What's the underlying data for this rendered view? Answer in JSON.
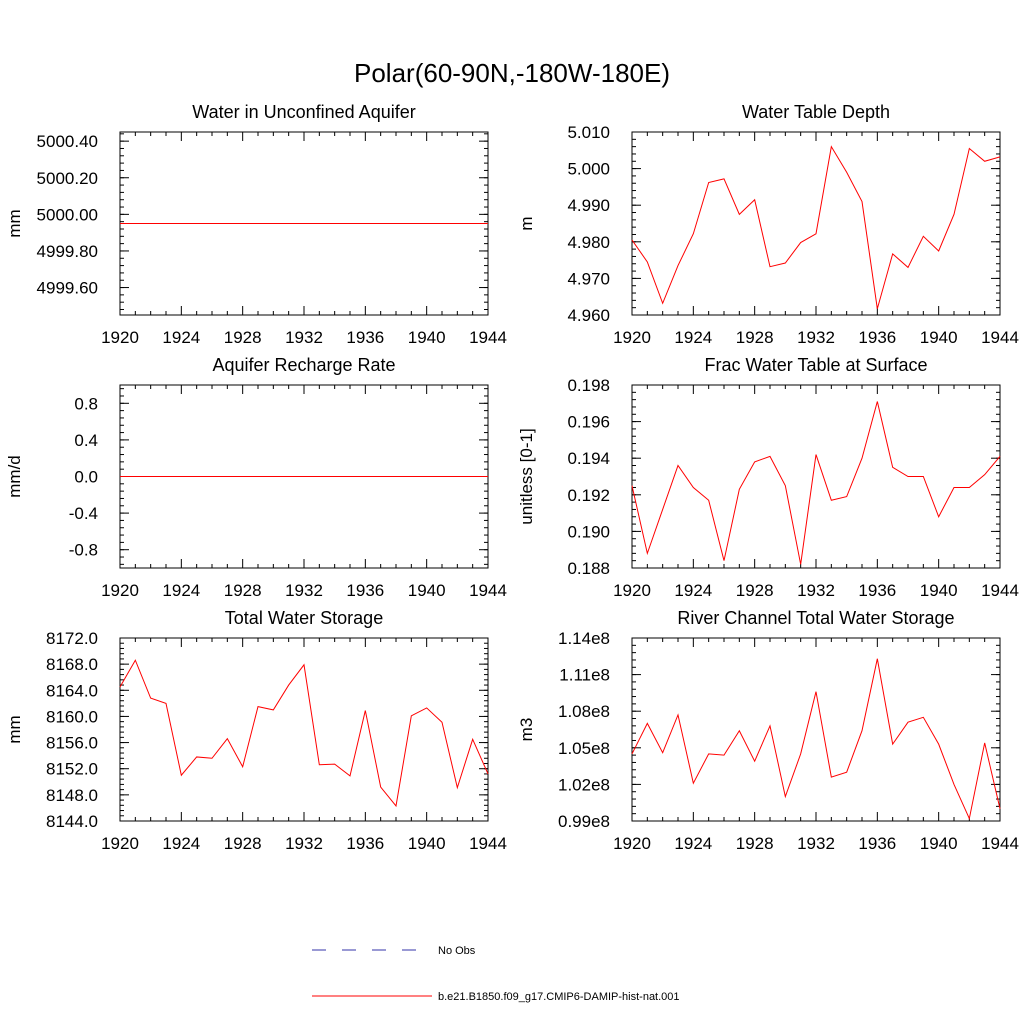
{
  "title": "Polar(60-90N,-180W-180E)",
  "colors": {
    "series": "#ff0000",
    "obs": "#3333aa",
    "frame": "#000000"
  },
  "legend": {
    "entries": [
      {
        "label": "No Obs",
        "style": "dashed",
        "color": "#3333aa"
      },
      {
        "label": "b.e21.B1850.f09_g17.CMIP6-DAMIP-hist-nat.001",
        "style": "solid",
        "color": "#ff0000"
      }
    ]
  },
  "chart_data": [
    {
      "type": "line",
      "title": "Water in Unconfined Aquifer",
      "ylabel": "mm",
      "xlim": [
        1920,
        1944
      ],
      "ylim": [
        4999.45,
        5000.45
      ],
      "xticks": [
        1920,
        1924,
        1928,
        1932,
        1936,
        1940,
        1944
      ],
      "yticks": [
        4999.6,
        4999.8,
        5000.0,
        5000.2,
        5000.4
      ],
      "ytick_labels": [
        "4999.60",
        "4999.80",
        "5000.00",
        "5000.20",
        "5000.40"
      ],
      "x": [
        1920,
        1921,
        1922,
        1923,
        1924,
        1925,
        1926,
        1927,
        1928,
        1929,
        1930,
        1931,
        1932,
        1933,
        1934,
        1935,
        1936,
        1937,
        1938,
        1939,
        1940,
        1941,
        1942,
        1943,
        1944
      ],
      "series": [
        {
          "name": "b.e21.B1850.f09_g17.CMIP6-DAMIP-hist-nat.001",
          "values": [
            4999.95,
            4999.95,
            4999.95,
            4999.95,
            4999.95,
            4999.95,
            4999.95,
            4999.95,
            4999.95,
            4999.95,
            4999.95,
            4999.95,
            4999.95,
            4999.95,
            4999.95,
            4999.95,
            4999.95,
            4999.95,
            4999.95,
            4999.95,
            4999.95,
            4999.95,
            4999.95,
            4999.95,
            4999.95
          ]
        }
      ]
    },
    {
      "type": "line",
      "title": "Water Table Depth",
      "ylabel": "m",
      "xlim": [
        1920,
        1944
      ],
      "ylim": [
        4.96,
        5.01
      ],
      "xticks": [
        1920,
        1924,
        1928,
        1932,
        1936,
        1940,
        1944
      ],
      "yticks": [
        4.96,
        4.97,
        4.98,
        4.99,
        5.0,
        5.01
      ],
      "ytick_labels": [
        "4.960",
        "4.970",
        "4.980",
        "4.990",
        "5.000",
        "5.010"
      ],
      "x": [
        1920,
        1921,
        1922,
        1923,
        1924,
        1925,
        1926,
        1927,
        1928,
        1929,
        1930,
        1931,
        1932,
        1933,
        1934,
        1935,
        1936,
        1937,
        1938,
        1939,
        1940,
        1941,
        1942,
        1943,
        1944
      ],
      "series": [
        {
          "name": "b.e21.B1850.f09_g17.CMIP6-DAMIP-hist-nat.001",
          "values": [
            4.9805,
            4.9745,
            4.9632,
            4.9735,
            4.9822,
            4.9962,
            4.9972,
            4.9875,
            4.9915,
            4.9732,
            4.9742,
            4.9798,
            4.9822,
            5.006,
            4.999,
            4.991,
            4.9617,
            4.9767,
            4.973,
            4.9815,
            4.9775,
            4.9875,
            5.0055,
            5.002,
            5.0032
          ]
        }
      ]
    },
    {
      "type": "line",
      "title": "Aquifer Recharge Rate",
      "ylabel": "mm/d",
      "xlim": [
        1920,
        1944
      ],
      "ylim": [
        -1.0,
        1.0
      ],
      "xticks": [
        1920,
        1924,
        1928,
        1932,
        1936,
        1940,
        1944
      ],
      "yticks": [
        -0.8,
        -0.4,
        0.0,
        0.4,
        0.8
      ],
      "ytick_labels": [
        "-0.8",
        "-0.4",
        "0.0",
        "0.4",
        "0.8"
      ],
      "x": [
        1920,
        1921,
        1922,
        1923,
        1924,
        1925,
        1926,
        1927,
        1928,
        1929,
        1930,
        1931,
        1932,
        1933,
        1934,
        1935,
        1936,
        1937,
        1938,
        1939,
        1940,
        1941,
        1942,
        1943,
        1944
      ],
      "series": [
        {
          "name": "b.e21.B1850.f09_g17.CMIP6-DAMIP-hist-nat.001",
          "values": [
            0,
            0,
            0,
            0,
            0,
            0,
            0,
            0,
            0,
            0,
            0,
            0,
            0,
            0,
            0,
            0,
            0,
            0,
            0,
            0,
            0,
            0,
            0,
            0,
            0
          ]
        }
      ]
    },
    {
      "type": "line",
      "title": "Frac Water Table at Surface",
      "ylabel": "unitless [0-1]",
      "xlim": [
        1920,
        1944
      ],
      "ylim": [
        0.188,
        0.198
      ],
      "xticks": [
        1920,
        1924,
        1928,
        1932,
        1936,
        1940,
        1944
      ],
      "yticks": [
        0.188,
        0.19,
        0.192,
        0.194,
        0.196,
        0.198
      ],
      "ytick_labels": [
        "0.188",
        "0.190",
        "0.192",
        "0.194",
        "0.196",
        "0.198"
      ],
      "x": [
        1920,
        1921,
        1922,
        1923,
        1924,
        1925,
        1926,
        1927,
        1928,
        1929,
        1930,
        1931,
        1932,
        1933,
        1934,
        1935,
        1936,
        1937,
        1938,
        1939,
        1940,
        1941,
        1942,
        1943,
        1944
      ],
      "series": [
        {
          "name": "b.e21.B1850.f09_g17.CMIP6-DAMIP-hist-nat.001",
          "values": [
            0.1925,
            0.1888,
            0.1912,
            0.1936,
            0.1924,
            0.1917,
            0.1884,
            0.1923,
            0.1938,
            0.1941,
            0.1925,
            0.1882,
            0.1942,
            0.1917,
            0.1919,
            0.194,
            0.1971,
            0.1935,
            0.193,
            0.193,
            0.1908,
            0.1924,
            0.1924,
            0.1931,
            0.1941
          ]
        }
      ]
    },
    {
      "type": "line",
      "title": "Total Water Storage",
      "ylabel": "mm",
      "xlim": [
        1920,
        1944
      ],
      "ylim": [
        8144.0,
        8172.0
      ],
      "xticks": [
        1920,
        1924,
        1928,
        1932,
        1936,
        1940,
        1944
      ],
      "yticks": [
        8144,
        8148,
        8152,
        8156,
        8160,
        8164,
        8168,
        8172
      ],
      "ytick_labels": [
        "8144.0",
        "8148.0",
        "8152.0",
        "8156.0",
        "8160.0",
        "8164.0",
        "8168.0",
        "8172.0"
      ],
      "x": [
        1920,
        1921,
        1922,
        1923,
        1924,
        1925,
        1926,
        1927,
        1928,
        1929,
        1930,
        1931,
        1932,
        1933,
        1934,
        1935,
        1936,
        1937,
        1938,
        1939,
        1940,
        1941,
        1942,
        1943,
        1944
      ],
      "series": [
        {
          "name": "b.e21.B1850.f09_g17.CMIP6-DAMIP-hist-nat.001",
          "values": [
            8164.5,
            8168.6,
            8162.8,
            8162.0,
            8151.0,
            8153.8,
            8153.6,
            8156.6,
            8152.3,
            8161.5,
            8161.0,
            8164.8,
            8167.9,
            8152.6,
            8152.7,
            8150.9,
            8160.9,
            8149.2,
            8146.3,
            8160.1,
            8161.3,
            8159.1,
            8149.1,
            8156.5,
            8151.2
          ]
        }
      ]
    },
    {
      "type": "line",
      "title": "River Channel Total Water Storage",
      "ylabel": "m3",
      "xlim": [
        1920,
        1944
      ],
      "ylim": [
        99000000.0,
        114000000.0
      ],
      "xticks": [
        1920,
        1924,
        1928,
        1932,
        1936,
        1940,
        1944
      ],
      "yticks": [
        99000000.0,
        102000000.0,
        105000000.0,
        108000000.0,
        111000000.0,
        114000000.0
      ],
      "ytick_labels": [
        "0.99e8",
        "1.02e8",
        "1.05e8",
        "1.08e8",
        "1.11e8",
        "1.14e8"
      ],
      "x": [
        1920,
        1921,
        1922,
        1923,
        1924,
        1925,
        1926,
        1927,
        1928,
        1929,
        1930,
        1931,
        1932,
        1933,
        1934,
        1935,
        1936,
        1937,
        1938,
        1939,
        1940,
        1941,
        1942,
        1943,
        1944
      ],
      "series": [
        {
          "name": "b.e21.B1850.f09_g17.CMIP6-DAMIP-hist-nat.001",
          "values": [
            104500000.0,
            107000000.0,
            104600000.0,
            107700000.0,
            102100000.0,
            104500000.0,
            104400000.0,
            106400000.0,
            103900000.0,
            106800000.0,
            101000000.0,
            104500000.0,
            109600000.0,
            102600000.0,
            103000000.0,
            106400000.0,
            112300000.0,
            105300000.0,
            107100000.0,
            107500000.0,
            105300000.0,
            102000000.0,
            99200000.0,
            105400000.0,
            100000000.0
          ]
        }
      ]
    }
  ]
}
